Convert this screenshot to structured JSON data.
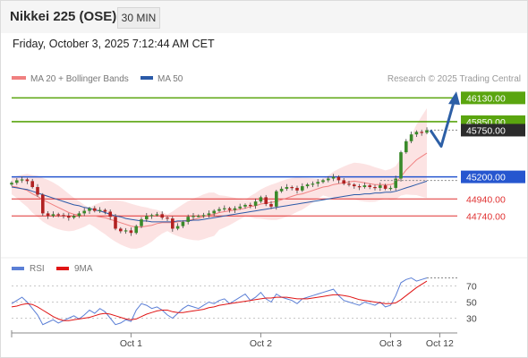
{
  "header": {
    "instrument": "Nikkei 225 (OSE)",
    "timeframe": "30 MIN",
    "datetime": "Friday, October 3, 2025 7:12:44 AM CET"
  },
  "chart_data": {
    "type": "candlestick",
    "legend": {
      "price": [
        {
          "name": "MA 20 + Bollinger Bands",
          "color": "#f08080"
        },
        {
          "name": "MA 50",
          "color": "#2b5aa8"
        }
      ],
      "rsi": [
        {
          "name": "RSI",
          "color": "#5b7fd6"
        },
        {
          "name": "9MA",
          "color": "#e01515"
        }
      ]
    },
    "credit": "Research © 2025 Trading Central",
    "price_axis": {
      "min": 44300,
      "max": 46250,
      "unit": "points"
    },
    "levels": [
      {
        "value": 46130,
        "label": "46130.00",
        "role": "target",
        "color": "#5aa50f"
      },
      {
        "value": 45850,
        "label": "45850.00",
        "role": "target",
        "color": "#5aa50f"
      },
      {
        "value": 45750,
        "label": "45750.00",
        "role": "last-price",
        "color": "#2b2b2b"
      },
      {
        "value": 45200,
        "label": "45200.00",
        "role": "pivot",
        "color": "#2656cf"
      },
      {
        "value": 44940,
        "label": "44940.00",
        "role": "support",
        "color": "#e03030"
      },
      {
        "value": 44740,
        "label": "44740.00",
        "role": "support",
        "color": "#e03030"
      }
    ],
    "close_series": [
      45130,
      45160,
      45170,
      45150,
      45080,
      44990,
      44770,
      44740,
      44760,
      44750,
      44740,
      44720,
      44740,
      44770,
      44800,
      44830,
      44800,
      44810,
      44790,
      44730,
      44590,
      44560,
      44570,
      44540,
      44620,
      44700,
      44740,
      44750,
      44760,
      44720,
      44710,
      44590,
      44620,
      44670,
      44730,
      44740,
      44740,
      44750,
      44770,
      44800,
      44820,
      44830,
      44810,
      44830,
      44850,
      44870,
      44860,
      44910,
      44960,
      44880,
      44850,
      45030,
      45060,
      45080,
      45070,
      45040,
      45090,
      45110,
      45120,
      45140,
      45160,
      45180,
      45200,
      45160,
      45120,
      45110,
      45090,
      45080,
      45100,
      45080,
      45070,
      45100,
      45060,
      45070,
      45180,
      45490,
      45620,
      45700,
      45730,
      45720,
      45750
    ],
    "ma20_series": [
      45090,
      45080,
      45060,
      45040,
      45000,
      44970,
      44930,
      44900,
      44870,
      44840,
      44810,
      44780,
      44760,
      44750,
      44740,
      44740,
      44740,
      44730,
      44720,
      44700,
      44680,
      44660,
      44640,
      44620,
      44610,
      44610,
      44620,
      44630,
      44650,
      44660,
      44660,
      44660,
      44670,
      44680,
      44690,
      44700,
      44710,
      44730,
      44750,
      44760,
      44780,
      44790,
      44800,
      44810,
      44820,
      44830,
      44850,
      44860,
      44880,
      44890,
      44900,
      44910,
      44930,
      44950,
      44970,
      44990,
      45000,
      45020,
      45040,
      45060,
      45080,
      45090,
      45110,
      45120,
      45130,
      45140,
      45150,
      45140,
      45130,
      45120,
      45110,
      45110,
      45110,
      45110,
      45130,
      45200,
      45280,
      45340,
      45400,
      45440,
      45480
    ],
    "ma50_series": [
      45080,
      45070,
      45060,
      45050,
      45030,
      45010,
      44990,
      44970,
      44950,
      44930,
      44910,
      44890,
      44870,
      44860,
      44840,
      44830,
      44810,
      44800,
      44780,
      44760,
      44740,
      44730,
      44710,
      44700,
      44690,
      44680,
      44680,
      44670,
      44670,
      44670,
      44670,
      44670,
      44680,
      44680,
      44680,
      44690,
      44690,
      44700,
      44710,
      44720,
      44730,
      44740,
      44750,
      44760,
      44770,
      44780,
      44790,
      44800,
      44810,
      44820,
      44830,
      44840,
      44850,
      44860,
      44870,
      44880,
      44890,
      44900,
      44910,
      44920,
      44930,
      44940,
      44950,
      44960,
      44970,
      44980,
      44990,
      44990,
      45000,
      45000,
      45010,
      45010,
      45020,
      45020,
      45030,
      45050,
      45070,
      45090,
      45110,
      45130,
      45150
    ],
    "projection": [
      45750,
      45560,
      46080
    ],
    "rsi_axis": {
      "min": 15,
      "max": 85,
      "ticks": [
        70,
        50,
        30
      ]
    },
    "rsi_series": [
      48,
      52,
      56,
      50,
      42,
      34,
      22,
      25,
      28,
      24,
      27,
      30,
      33,
      29,
      34,
      40,
      36,
      42,
      38,
      30,
      22,
      24,
      28,
      26,
      40,
      48,
      46,
      42,
      44,
      40,
      34,
      30,
      36,
      42,
      46,
      44,
      42,
      46,
      50,
      48,
      52,
      54,
      48,
      52,
      56,
      60,
      52,
      56,
      62,
      54,
      50,
      60,
      56,
      54,
      52,
      48,
      54,
      56,
      58,
      60,
      62,
      64,
      66,
      58,
      52,
      50,
      48,
      46,
      50,
      48,
      46,
      50,
      44,
      46,
      58,
      74,
      78,
      80,
      76,
      78,
      80
    ],
    "rsi_ma_series": [
      44,
      45,
      47,
      48,
      47,
      44,
      40,
      36,
      32,
      29,
      27,
      27,
      28,
      29,
      30,
      31,
      33,
      35,
      36,
      35,
      33,
      31,
      29,
      28,
      29,
      32,
      35,
      37,
      39,
      40,
      40,
      38,
      37,
      37,
      38,
      39,
      40,
      41,
      43,
      44,
      46,
      47,
      48,
      49,
      50,
      51,
      52,
      53,
      54,
      55,
      55,
      56,
      56,
      56,
      55,
      54,
      54,
      54,
      55,
      56,
      57,
      58,
      59,
      59,
      58,
      57,
      55,
      53,
      52,
      51,
      50,
      49,
      48,
      48,
      49,
      53,
      58,
      63,
      68,
      72,
      76
    ],
    "x_axis": {
      "labels": [
        {
          "label": "Oct 1",
          "index": 23
        },
        {
          "label": "Oct 2",
          "index": 48
        },
        {
          "label": "Oct 3",
          "index": 73
        },
        {
          "label": "Oct 12",
          "index": 83
        }
      ]
    }
  }
}
